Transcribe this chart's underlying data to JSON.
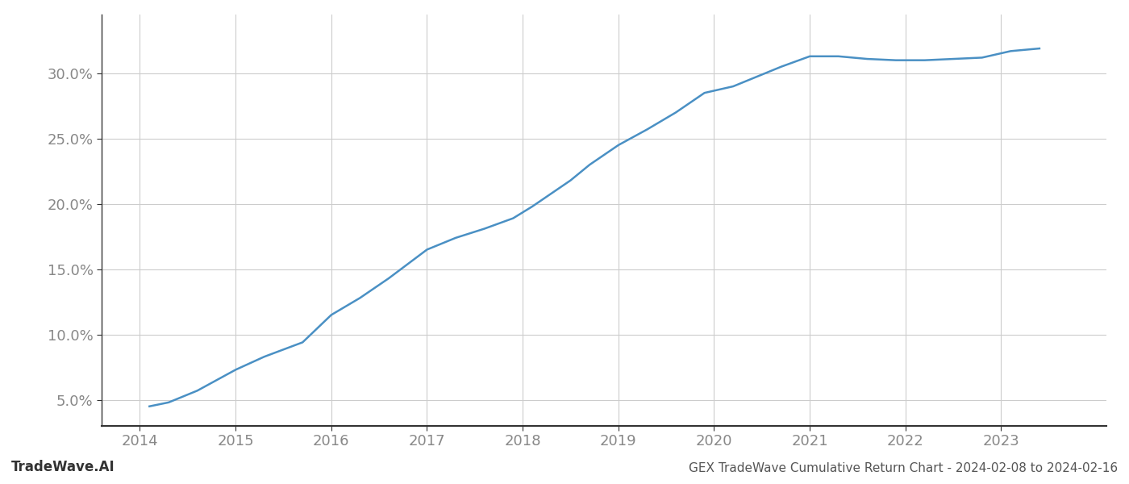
{
  "x_values": [
    2014.1,
    2014.3,
    2014.6,
    2015.0,
    2015.3,
    2015.7,
    2016.0,
    2016.3,
    2016.6,
    2017.0,
    2017.3,
    2017.6,
    2017.9,
    2018.1,
    2018.3,
    2018.5,
    2018.7,
    2019.0,
    2019.3,
    2019.6,
    2019.9,
    2020.2,
    2020.5,
    2020.7,
    2021.0,
    2021.3,
    2021.6,
    2021.9,
    2022.2,
    2022.5,
    2022.8,
    2023.1,
    2023.4
  ],
  "y_values": [
    0.045,
    0.048,
    0.057,
    0.073,
    0.083,
    0.094,
    0.115,
    0.128,
    0.143,
    0.165,
    0.174,
    0.181,
    0.189,
    0.198,
    0.208,
    0.218,
    0.23,
    0.245,
    0.257,
    0.27,
    0.285,
    0.29,
    0.299,
    0.305,
    0.313,
    0.313,
    0.311,
    0.31,
    0.31,
    0.311,
    0.312,
    0.317,
    0.319
  ],
  "line_color": "#4a90c4",
  "line_width": 1.8,
  "background_color": "#ffffff",
  "grid_color": "#cccccc",
  "title": "GEX TradeWave Cumulative Return Chart - 2024-02-08 to 2024-02-16",
  "watermark": "TradeWave.AI",
  "xlim": [
    2013.6,
    2024.1
  ],
  "ylim": [
    0.03,
    0.345
  ],
  "yticks": [
    0.05,
    0.1,
    0.15,
    0.2,
    0.25,
    0.3
  ],
  "xticks": [
    2014,
    2015,
    2016,
    2017,
    2018,
    2019,
    2020,
    2021,
    2022,
    2023
  ],
  "tick_label_fontsize": 13,
  "title_fontsize": 11,
  "watermark_fontsize": 12
}
